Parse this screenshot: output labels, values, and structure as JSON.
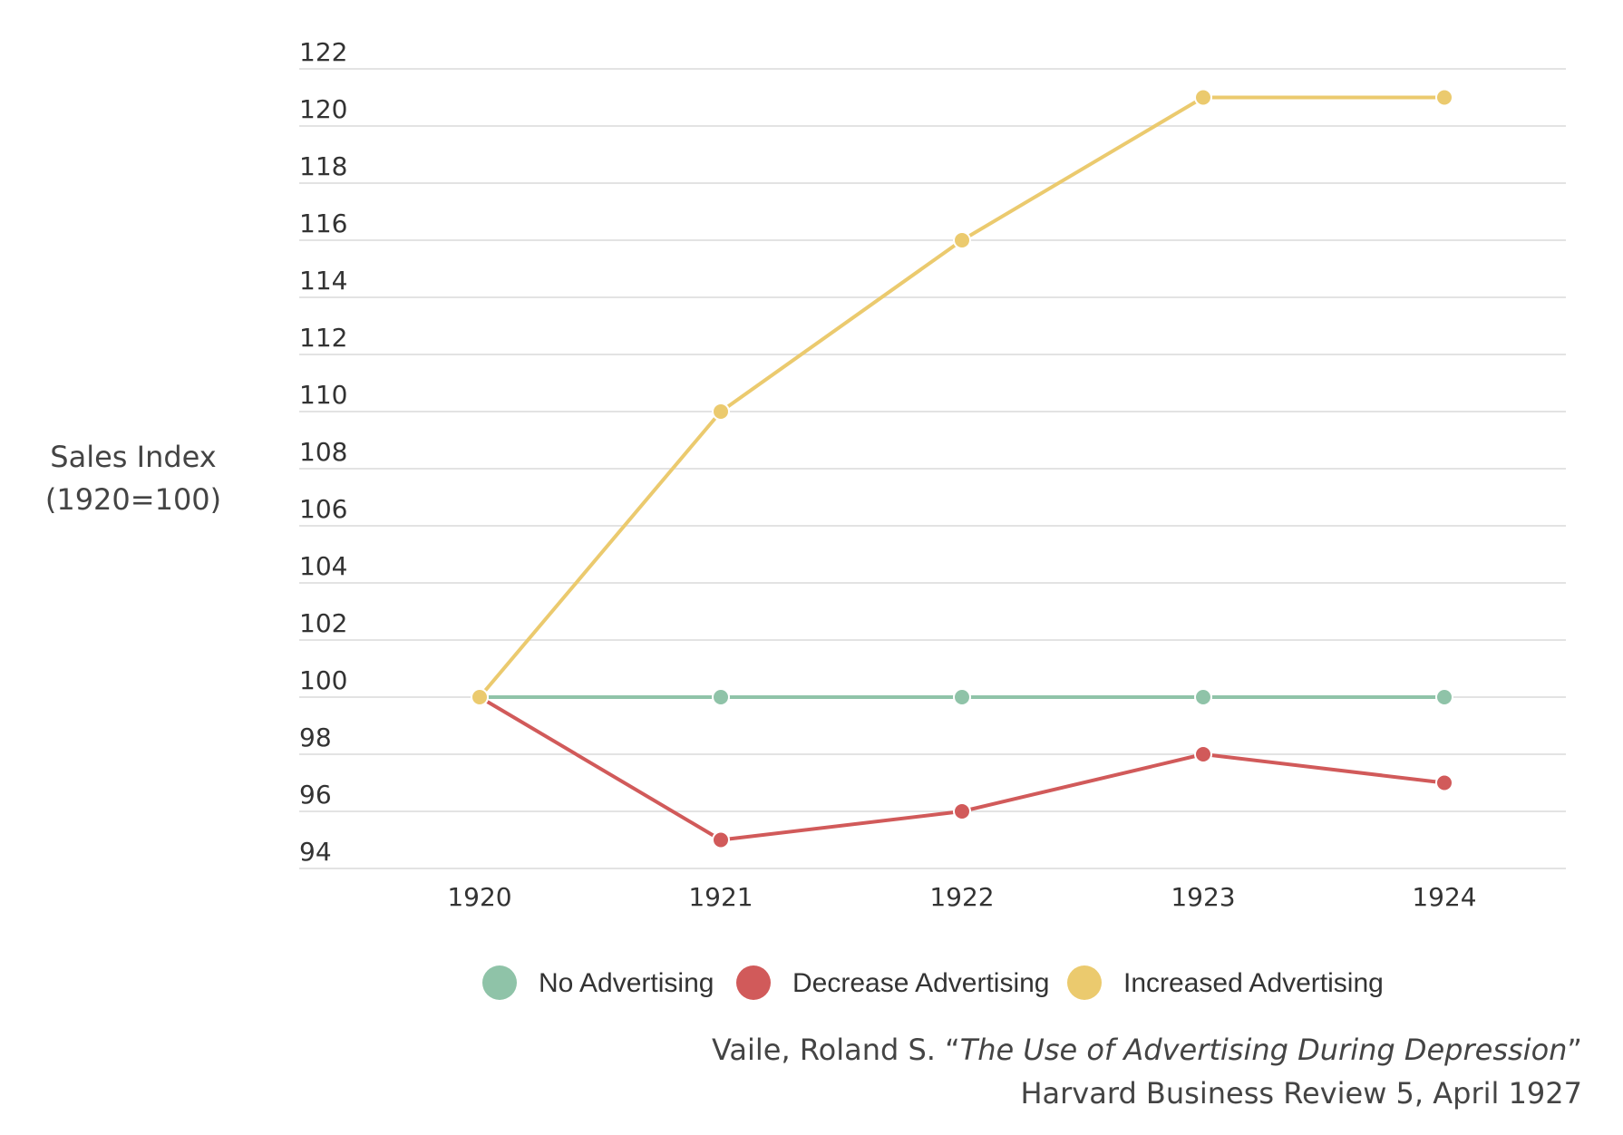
{
  "chart_data": {
    "type": "line",
    "title": "",
    "ylabel_line1": "Sales Index",
    "ylabel_line2": "(1920=100)",
    "xlabel": "",
    "categories": [
      "1920",
      "1921",
      "1922",
      "1923",
      "1924"
    ],
    "ylim": [
      94,
      122
    ],
    "yticks": [
      94,
      96,
      98,
      100,
      102,
      104,
      106,
      108,
      110,
      112,
      114,
      116,
      118,
      120,
      122
    ],
    "grid": true,
    "legend_position": "bottom",
    "series": [
      {
        "name": "No Advertising",
        "color": "#8fc3a8",
        "values": [
          100,
          100,
          100,
          100,
          100
        ]
      },
      {
        "name": "Decrease Advertising",
        "color": "#d15a5a",
        "values": [
          100,
          95,
          96,
          98,
          97
        ]
      },
      {
        "name": "Increased Advertising",
        "color": "#ebca6e",
        "values": [
          100,
          110,
          116,
          121,
          121
        ]
      }
    ]
  },
  "citation": {
    "line1_prefix": "Vaile, Roland S. “",
    "line1_title": "The Use of Advertising During Depression",
    "line1_suffix": "”",
    "line2": "Harvard Business Review 5, April 1927"
  }
}
